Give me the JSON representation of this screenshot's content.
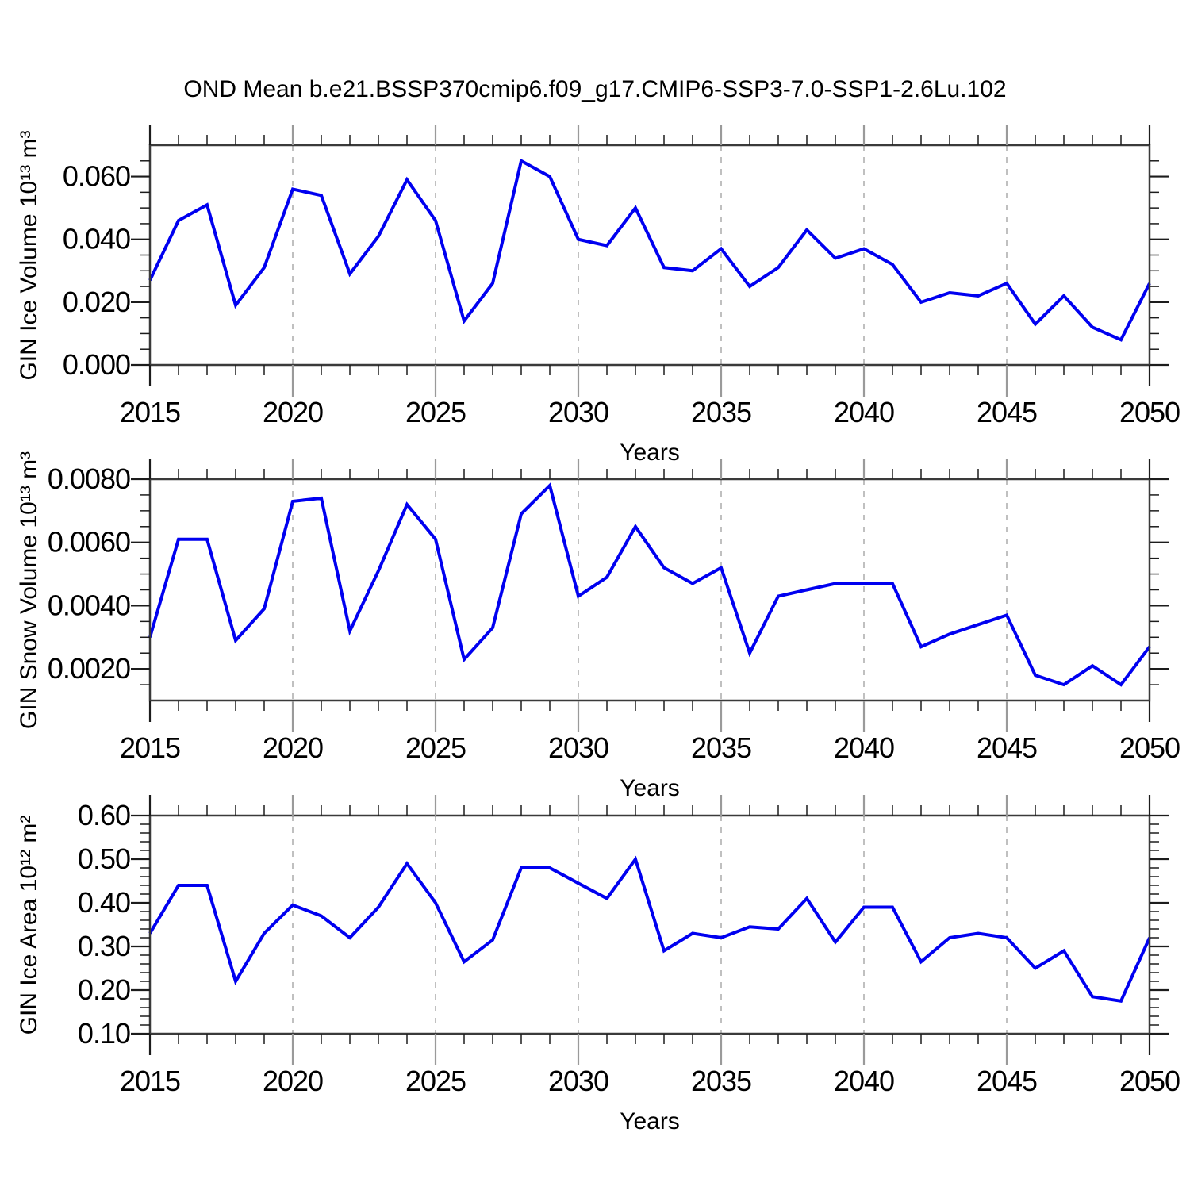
{
  "title": "OND Mean b.e21.BSSP370cmip6.f09_g17.CMIP6-SSP3-7.0-SSP1-2.6Lu.102",
  "colors": {
    "line": "#0000f0",
    "grid": "#b9b9b9",
    "grid_tick": "#9a9a9a",
    "tick": "#1c1c1c",
    "frame": "#3a3a3a",
    "text": "#000000"
  },
  "chart_data": [
    {
      "type": "line",
      "panel": "gin-ice-volume",
      "xlabel": "Years",
      "ylabel": "GIN Ice Volume 10¹³ m³",
      "x": [
        2015,
        2016,
        2017,
        2018,
        2019,
        2020,
        2021,
        2022,
        2023,
        2024,
        2025,
        2026,
        2027,
        2028,
        2029,
        2030,
        2031,
        2032,
        2033,
        2034,
        2035,
        2036,
        2037,
        2038,
        2039,
        2040,
        2041,
        2042,
        2043,
        2044,
        2045,
        2046,
        2047,
        2048,
        2049,
        2050
      ],
      "values": [
        0.027,
        0.046,
        0.051,
        0.019,
        0.031,
        0.056,
        0.054,
        0.029,
        0.041,
        0.059,
        0.046,
        0.014,
        0.026,
        0.065,
        0.06,
        0.04,
        0.038,
        0.05,
        0.031,
        0.03,
        0.037,
        0.025,
        0.031,
        0.043,
        0.034,
        0.037,
        0.032,
        0.02,
        0.023,
        0.022,
        0.026,
        0.013,
        0.022,
        0.012,
        0.008,
        0.026
      ],
      "xlim": [
        2015,
        2050
      ],
      "ylim": [
        0.0,
        0.07
      ],
      "xticks_major": [
        2015,
        2020,
        2025,
        2030,
        2035,
        2040,
        2045,
        2050
      ],
      "xticks_minor_step": 1,
      "yticks_major": [
        0.0,
        0.02,
        0.04,
        0.06
      ],
      "ytick_labels": [
        "0.000",
        "0.020",
        "0.040",
        "0.060"
      ],
      "yticks_minor_step": 0.005,
      "grid_years": [
        2020,
        2025,
        2030,
        2035,
        2040,
        2045
      ],
      "grid_style": "vertical-dashed",
      "legend": "none",
      "line_color": "#0000f0"
    },
    {
      "type": "line",
      "panel": "gin-snow-volume",
      "xlabel": "Years",
      "ylabel": "GIN Snow Volume 10¹³ m³",
      "x": [
        2015,
        2016,
        2017,
        2018,
        2019,
        2020,
        2021,
        2022,
        2023,
        2024,
        2025,
        2026,
        2027,
        2028,
        2029,
        2030,
        2031,
        2032,
        2033,
        2034,
        2035,
        2036,
        2037,
        2038,
        2039,
        2040,
        2041,
        2042,
        2043,
        2044,
        2045,
        2046,
        2047,
        2048,
        2049,
        2050
      ],
      "values": [
        0.003,
        0.0061,
        0.0061,
        0.0029,
        0.0039,
        0.0073,
        0.0074,
        0.0032,
        0.0051,
        0.0072,
        0.0061,
        0.0023,
        0.0033,
        0.0069,
        0.0078,
        0.0043,
        0.0049,
        0.0065,
        0.0052,
        0.0047,
        0.0052,
        0.0025,
        0.0043,
        0.0045,
        0.0047,
        0.0047,
        0.0047,
        0.0027,
        0.0031,
        0.0034,
        0.0037,
        0.0018,
        0.0015,
        0.0021,
        0.0015,
        0.0027
      ],
      "xlim": [
        2015,
        2050
      ],
      "ylim": [
        0.001,
        0.008
      ],
      "xticks_major": [
        2015,
        2020,
        2025,
        2030,
        2035,
        2040,
        2045,
        2050
      ],
      "xticks_minor_step": 1,
      "yticks_major": [
        0.002,
        0.004,
        0.006,
        0.008
      ],
      "ytick_labels": [
        "0.0020",
        "0.0040",
        "0.0060",
        "0.0080"
      ],
      "yticks_minor_step": 0.0005,
      "grid_years": [
        2020,
        2025,
        2030,
        2035,
        2040,
        2045
      ],
      "grid_style": "vertical-dashed",
      "legend": "none",
      "line_color": "#0000f0"
    },
    {
      "type": "line",
      "panel": "gin-ice-area",
      "xlabel": "Years",
      "ylabel": "GIN Ice Area 10¹² m²",
      "x": [
        2015,
        2016,
        2017,
        2018,
        2019,
        2020,
        2021,
        2022,
        2023,
        2024,
        2025,
        2026,
        2027,
        2028,
        2029,
        2030,
        2031,
        2032,
        2033,
        2034,
        2035,
        2036,
        2037,
        2038,
        2039,
        2040,
        2041,
        2042,
        2043,
        2044,
        2045,
        2046,
        2047,
        2048,
        2049,
        2050
      ],
      "values": [
        0.33,
        0.44,
        0.44,
        0.22,
        0.33,
        0.395,
        0.37,
        0.32,
        0.39,
        0.49,
        0.4,
        0.265,
        0.315,
        0.48,
        0.48,
        0.445,
        0.41,
        0.5,
        0.29,
        0.33,
        0.32,
        0.345,
        0.34,
        0.41,
        0.31,
        0.39,
        0.39,
        0.265,
        0.32,
        0.33,
        0.32,
        0.25,
        0.29,
        0.185,
        0.175,
        0.32
      ],
      "xlim": [
        2015,
        2050
      ],
      "ylim": [
        0.1,
        0.6
      ],
      "xticks_major": [
        2015,
        2020,
        2025,
        2030,
        2035,
        2040,
        2045,
        2050
      ],
      "xticks_minor_step": 1,
      "yticks_major": [
        0.1,
        0.2,
        0.3,
        0.4,
        0.5,
        0.6
      ],
      "ytick_labels": [
        "0.10",
        "0.20",
        "0.30",
        "0.40",
        "0.50",
        "0.60"
      ],
      "yticks_minor_step": 0.02,
      "grid_years": [
        2020,
        2025,
        2030,
        2035,
        2040,
        2045
      ],
      "grid_style": "vertical-dashed",
      "legend": "none",
      "line_color": "#0000f0"
    }
  ]
}
